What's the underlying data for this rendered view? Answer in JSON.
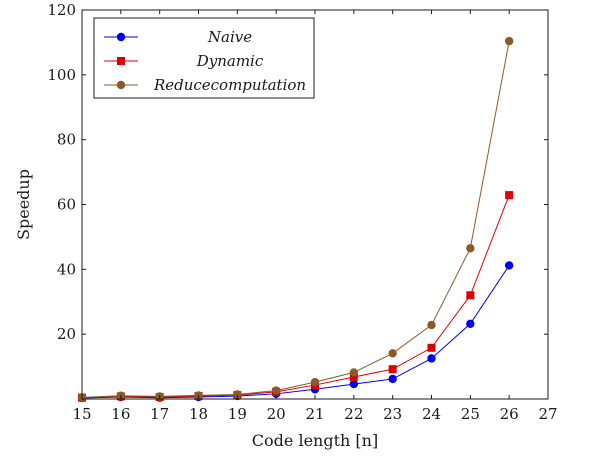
{
  "chart_data": {
    "type": "line",
    "title": "",
    "xlabel": "Code length [n]",
    "ylabel": "Speedup",
    "xlim": [
      15,
      27
    ],
    "ylim": [
      0,
      120
    ],
    "x_ticks": [
      15,
      16,
      17,
      18,
      19,
      20,
      21,
      22,
      23,
      24,
      25,
      26,
      27
    ],
    "y_ticks": [
      20,
      40,
      60,
      80,
      100,
      120
    ],
    "x": [
      15,
      16,
      17,
      18,
      19,
      20,
      21,
      22,
      23,
      24,
      25,
      26
    ],
    "grid": false,
    "legend_position": "top-left",
    "series": [
      {
        "name": "Naive",
        "color": "#0000ee",
        "marker": "circle",
        "values": [
          0.3,
          0.6,
          0.4,
          0.6,
          0.9,
          1.6,
          3.0,
          4.6,
          6.2,
          12.5,
          23.2,
          41.2
        ]
      },
      {
        "name": "Dynamic",
        "color": "#dd0000",
        "marker": "square",
        "values": [
          0.4,
          0.8,
          0.6,
          0.9,
          1.2,
          2.2,
          4.3,
          6.8,
          9.2,
          15.8,
          32.0,
          62.9
        ]
      },
      {
        "name": "Reducecomputation",
        "color": "#8b5a2b",
        "marker": "circle",
        "values": [
          0.5,
          1.0,
          0.8,
          1.1,
          1.4,
          2.6,
          5.2,
          8.2,
          14.1,
          22.8,
          46.5,
          110.4
        ]
      }
    ]
  }
}
